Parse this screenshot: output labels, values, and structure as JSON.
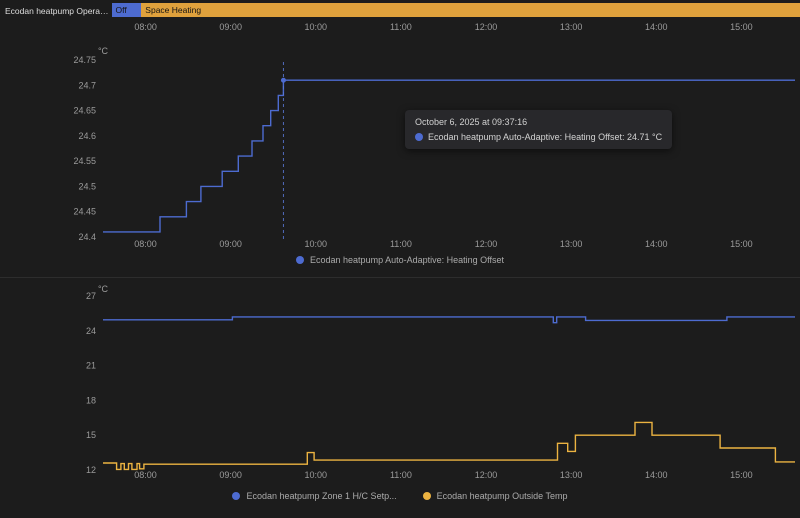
{
  "colors": {
    "background": "#1c1c1c",
    "blue": "#4d6bd0",
    "yellow": "#ecb341",
    "axis_text": "#9b9b9b",
    "cursor": "#5a78d6",
    "tooltip_bg": "#28282b",
    "divider": "#2d2d2d"
  },
  "timeline": {
    "entity_label": "Ecodan heatpump Operation Mo...",
    "segments": [
      {
        "label": "Off",
        "color": "#4d6bd0",
        "start": 7.6,
        "end": 7.95
      },
      {
        "label": "Space Heating",
        "color": "#dfa13c",
        "start": 7.95,
        "end": 15.7
      }
    ]
  },
  "x_axis": {
    "start": 7.5,
    "end": 15.63,
    "ticks": [
      {
        "t": 8,
        "label": "08:00"
      },
      {
        "t": 9,
        "label": "09:00"
      },
      {
        "t": 10,
        "label": "10:00"
      },
      {
        "t": 11,
        "label": "11:00"
      },
      {
        "t": 12,
        "label": "12:00"
      },
      {
        "t": 13,
        "label": "13:00"
      },
      {
        "t": 14,
        "label": "14:00"
      },
      {
        "t": 15,
        "label": "15:00"
      }
    ]
  },
  "chart_data": [
    {
      "type": "line",
      "title": "Ecodan heatpump Auto-Adaptive: Heating Offset",
      "ylabel": "°C",
      "ylim": [
        24.4,
        24.75
      ],
      "yticks": [
        {
          "v": 24.75,
          "label": "24.75"
        },
        {
          "v": 24.7,
          "label": "24.7"
        },
        {
          "v": 24.65,
          "label": "24.65"
        },
        {
          "v": 24.6,
          "label": "24.6"
        },
        {
          "v": 24.55,
          "label": "24.55"
        },
        {
          "v": 24.5,
          "label": "24.5"
        },
        {
          "v": 24.45,
          "label": "24.45"
        },
        {
          "v": 24.4,
          "label": "24.4"
        }
      ],
      "series": [
        {
          "name": "Ecodan heatpump Auto-Adaptive: Heating Offset",
          "color": "#4d6bd0",
          "step": true,
          "points": [
            [
              7.5,
              24.41
            ],
            [
              8.17,
              24.44
            ],
            [
              8.48,
              24.47
            ],
            [
              8.65,
              24.5
            ],
            [
              8.9,
              24.53
            ],
            [
              9.09,
              24.56
            ],
            [
              9.25,
              24.59
            ],
            [
              9.38,
              24.62
            ],
            [
              9.47,
              24.65
            ],
            [
              9.56,
              24.68
            ],
            [
              9.62,
              24.71
            ]
          ]
        }
      ],
      "cursor_time": 9.62,
      "tooltip": {
        "title": "October 6, 2025 at 09:37:16",
        "text": "Ecodan heatpump Auto-Adaptive: Heating Offset: 24.71 °C"
      },
      "legend": [
        "Ecodan heatpump Auto-Adaptive: Heating Offset"
      ]
    },
    {
      "type": "line",
      "title": "",
      "ylabel": "°C",
      "ylim": [
        12,
        27
      ],
      "yticks": [
        {
          "v": 27,
          "label": "27"
        },
        {
          "v": 24,
          "label": "24"
        },
        {
          "v": 21,
          "label": "21"
        },
        {
          "v": 18,
          "label": "18"
        },
        {
          "v": 15,
          "label": "15"
        },
        {
          "v": 12,
          "label": "12"
        }
      ],
      "series": [
        {
          "name": "Ecodan heatpump Zone 1 H/C Setp...",
          "color": "#4d6bd0",
          "step": true,
          "points": [
            [
              7.5,
              24.95
            ],
            [
              9.02,
              25.2
            ],
            [
              12.79,
              24.7
            ],
            [
              12.83,
              25.2
            ],
            [
              13.17,
              24.9
            ],
            [
              14.83,
              25.2
            ]
          ]
        },
        {
          "name": "Ecodan heatpump Outside Temp",
          "color": "#ecb341",
          "step": true,
          "points": [
            [
              7.5,
              12.6
            ],
            [
              7.66,
              12.05
            ],
            [
              7.71,
              12.55
            ],
            [
              7.75,
              12.05
            ],
            [
              7.8,
              12.55
            ],
            [
              7.84,
              12.05
            ],
            [
              7.9,
              12.55
            ],
            [
              7.93,
              12.1
            ],
            [
              7.98,
              12.5
            ],
            [
              9.9,
              13.5
            ],
            [
              9.98,
              12.85
            ],
            [
              12.84,
              14.3
            ],
            [
              12.96,
              13.6
            ],
            [
              13.05,
              15.0
            ],
            [
              13.75,
              16.1
            ],
            [
              13.95,
              15.0
            ],
            [
              14.75,
              13.9
            ],
            [
              15.4,
              12.7
            ]
          ]
        }
      ],
      "legend": [
        "Ecodan heatpump Zone 1 H/C Setp...",
        "Ecodan heatpump Outside Temp"
      ]
    }
  ]
}
